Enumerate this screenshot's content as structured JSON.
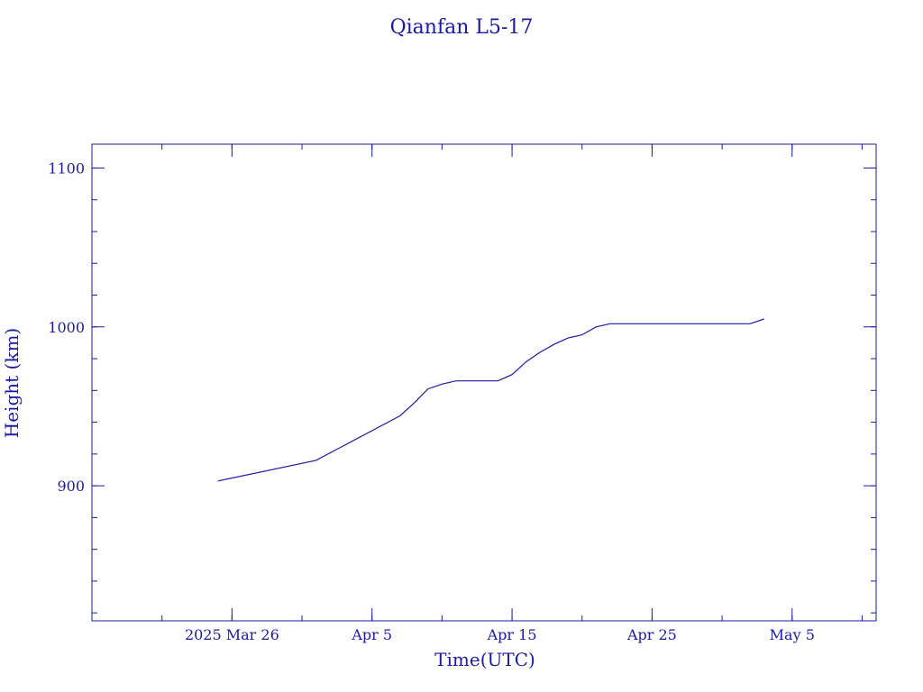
{
  "chart_data": {
    "type": "line",
    "title": "Qianfan L5-17",
    "xlabel": "Time(UTC)",
    "ylabel": "Height (km)",
    "color": "#1a1aa6",
    "xlim": [
      "2025-03-16",
      "2025-05-11"
    ],
    "ylim": [
      815,
      1115
    ],
    "x_ticks": [
      {
        "date": "2025-03-26",
        "label": "2025 Mar 26"
      },
      {
        "date": "2025-04-05",
        "label": "Apr  5"
      },
      {
        "date": "2025-04-15",
        "label": "Apr 15"
      },
      {
        "date": "2025-04-25",
        "label": "Apr 25"
      },
      {
        "date": "2025-05-05",
        "label": "May  5"
      }
    ],
    "y_ticks": [
      900,
      1000,
      1100
    ],
    "y_minor_step": 20,
    "x_minor_step_days": 5,
    "grid": false,
    "series": [
      {
        "x": [
          "2025-03-25",
          "2025-04-01",
          "2025-04-07",
          "2025-04-08",
          "2025-04-09",
          "2025-04-10",
          "2025-04-11",
          "2025-04-12",
          "2025-04-13",
          "2025-04-14",
          "2025-04-15",
          "2025-04-16",
          "2025-04-17",
          "2025-04-18",
          "2025-04-19",
          "2025-04-20",
          "2025-04-21",
          "2025-04-22",
          "2025-05-02",
          "2025-05-03"
        ],
        "y": [
          903,
          916,
          944,
          952,
          961,
          964,
          966,
          966,
          966,
          966,
          970,
          978,
          984,
          989,
          993,
          995,
          1000,
          1002,
          1002,
          1005
        ]
      }
    ]
  }
}
